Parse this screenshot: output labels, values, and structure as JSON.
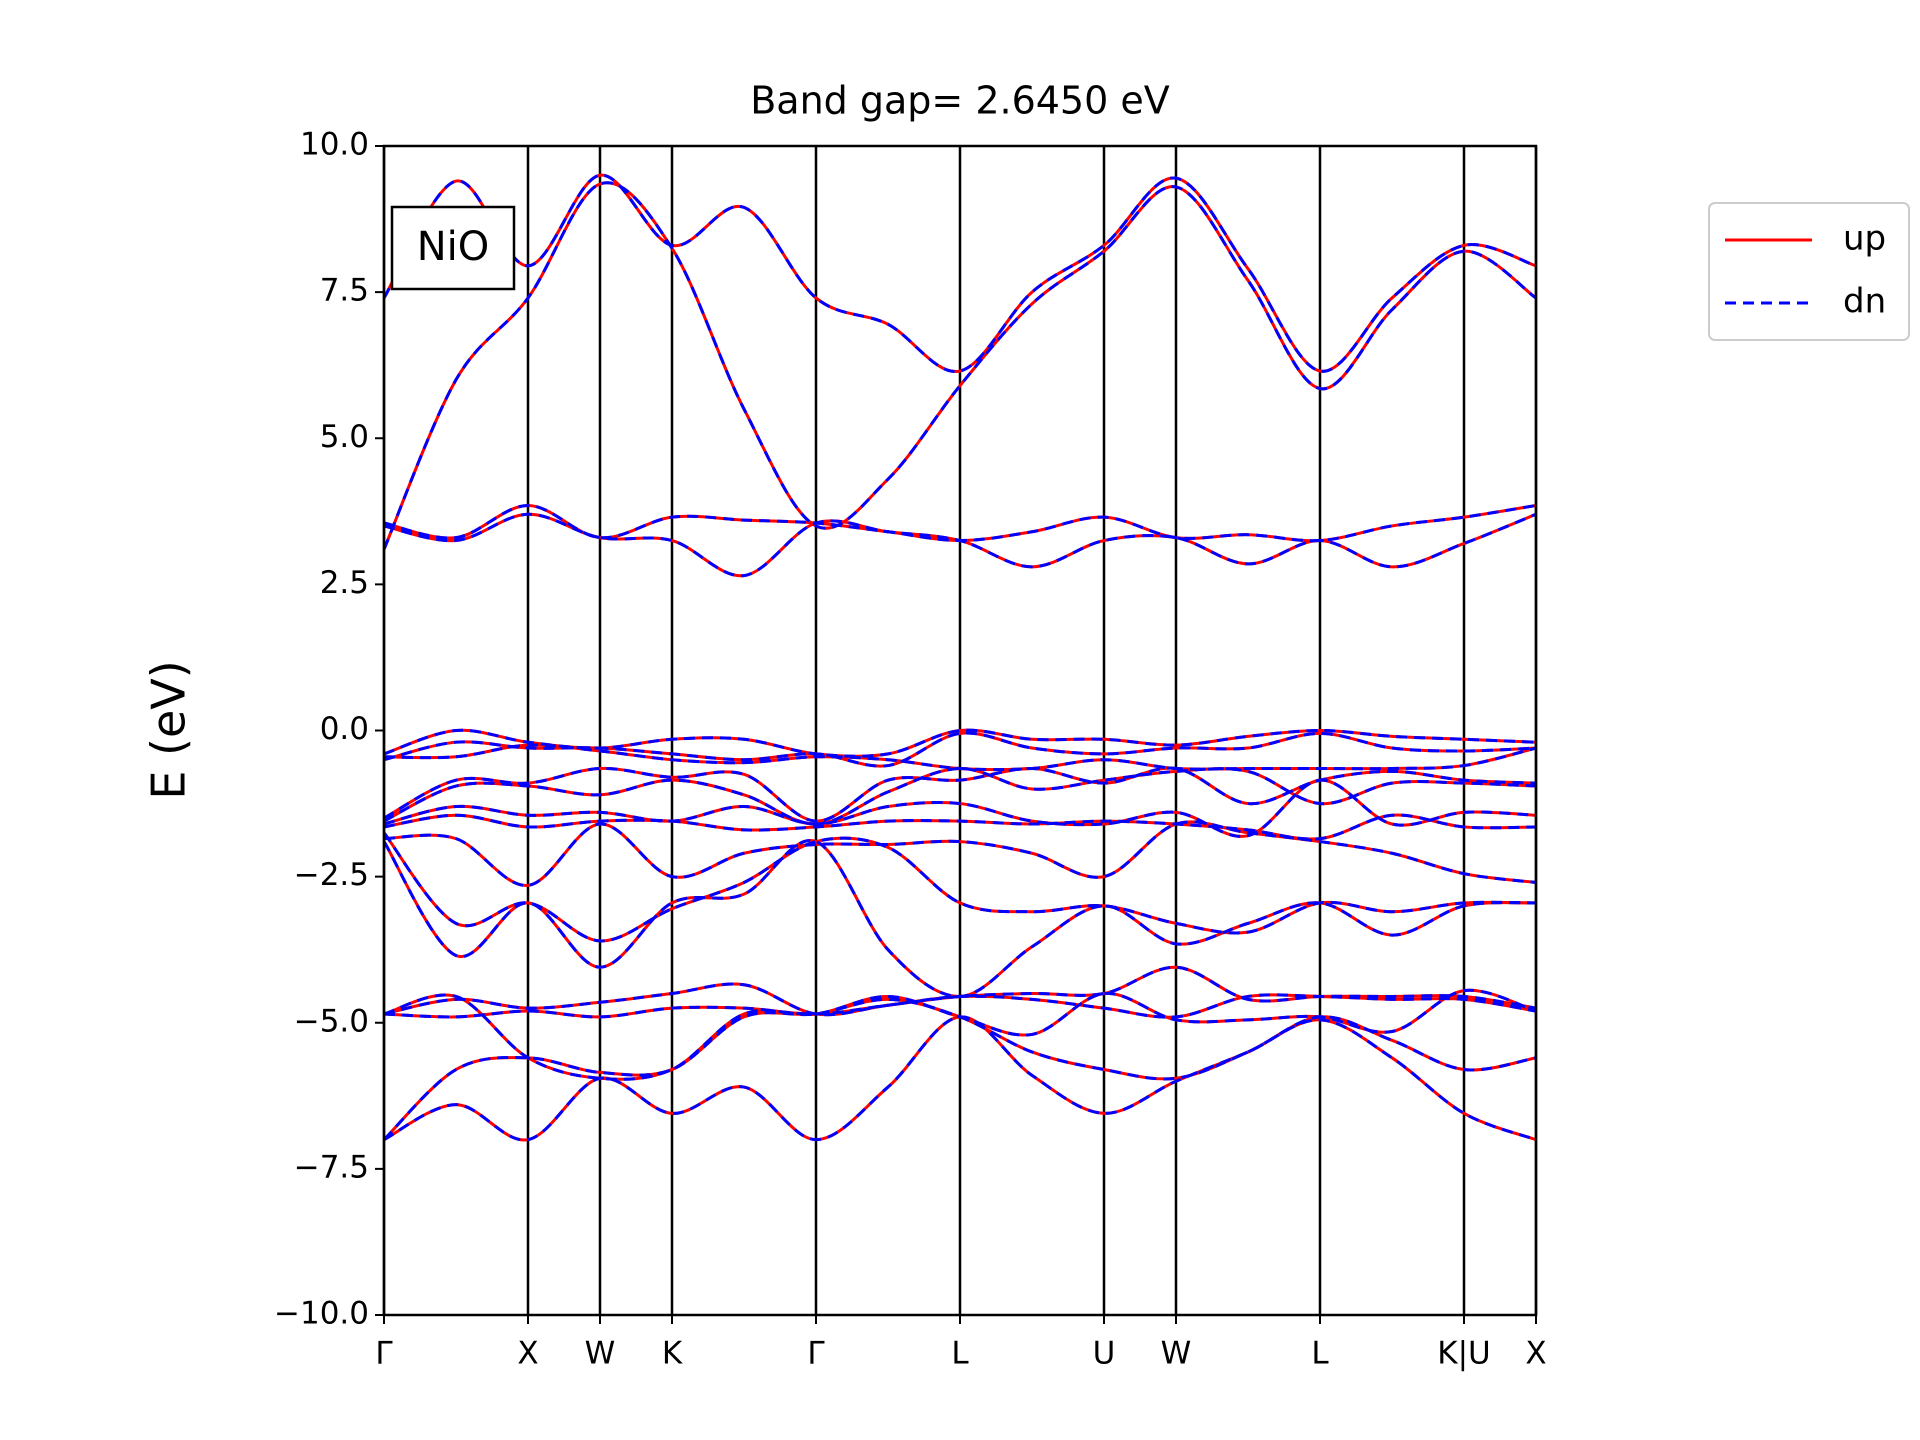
{
  "chart_data": {
    "type": "line",
    "title": "Band gap= 2.6450 eV",
    "ylabel": "E (eV)",
    "annotation": "NiO",
    "x": [
      0,
      1,
      2,
      3,
      4,
      5,
      6,
      7,
      8,
      9,
      10,
      11,
      12,
      13,
      14,
      15,
      16
    ],
    "xlim": [
      0,
      16
    ],
    "xticks": [
      {
        "value": 0,
        "label": "Γ"
      },
      {
        "value": 2,
        "label": "X"
      },
      {
        "value": 3,
        "label": "W"
      },
      {
        "value": 4,
        "label": "K"
      },
      {
        "value": 6,
        "label": "Γ"
      },
      {
        "value": 8,
        "label": "L"
      },
      {
        "value": 10,
        "label": "U"
      },
      {
        "value": 11,
        "label": "W"
      },
      {
        "value": 13,
        "label": "L"
      },
      {
        "value": 15,
        "label": "K|U"
      },
      {
        "value": 16,
        "label": "X"
      }
    ],
    "ylim": [
      -10,
      10
    ],
    "yticks": [
      {
        "value": -10,
        "label": "−10.0"
      },
      {
        "value": -7.5,
        "label": "−7.5"
      },
      {
        "value": -5,
        "label": "−5.0"
      },
      {
        "value": -2.5,
        "label": "−2.5"
      },
      {
        "value": 0,
        "label": "0.0"
      },
      2.5,
      {
        "value": 5,
        "label": "5.0"
      },
      7.5,
      {
        "value": 10,
        "label": "10.0"
      }
    ],
    "xgrid": true,
    "legend": "outside upper right",
    "series": [
      {
        "name": "up",
        "color": "#ff0000",
        "linestyle": "solid",
        "values": [
          [
            7.4,
            9.4,
            7.95,
            9.5,
            8.3,
            8.95,
            7.4,
            6.95,
            6.15,
            7.5,
            8.3,
            9.45,
            7.9,
            6.15,
            7.4,
            8.3,
            7.95
          ],
          [
            3.1,
            6.0,
            7.4,
            9.35,
            8.25,
            5.5,
            3.5,
            4.3,
            5.9,
            7.3,
            8.2,
            9.3,
            7.7,
            5.85,
            7.2,
            8.2,
            7.4
          ],
          [
            3.55,
            3.3,
            3.85,
            3.3,
            3.65,
            3.6,
            3.55,
            3.4,
            3.25,
            3.4,
            3.65,
            3.3,
            3.35,
            3.25,
            3.5,
            3.65,
            3.85
          ],
          [
            3.5,
            3.25,
            3.7,
            3.3,
            3.25,
            2.65,
            3.55,
            3.4,
            3.25,
            2.8,
            3.25,
            3.3,
            2.85,
            3.25,
            2.8,
            3.2,
            3.7
          ],
          [
            -0.4,
            0.0,
            -0.2,
            -0.3,
            -0.15,
            -0.15,
            -0.4,
            -0.4,
            0.0,
            -0.15,
            -0.15,
            -0.25,
            -0.1,
            0.0,
            -0.1,
            -0.15,
            -0.2
          ],
          [
            -0.5,
            -0.2,
            -0.3,
            -0.3,
            -0.4,
            -0.5,
            -0.4,
            -0.6,
            -0.05,
            -0.3,
            -0.4,
            -0.3,
            -0.3,
            -0.05,
            -0.3,
            -0.35,
            -0.3
          ],
          [
            -0.45,
            -0.45,
            -0.25,
            -0.35,
            -0.5,
            -0.55,
            -0.45,
            -0.5,
            -0.65,
            -0.65,
            -0.5,
            -0.65,
            -0.65,
            -0.65,
            -0.65,
            -0.6,
            -0.3
          ],
          [
            -1.5,
            -0.85,
            -0.9,
            -0.65,
            -0.8,
            -0.75,
            -1.55,
            -0.85,
            -0.85,
            -0.65,
            -0.9,
            -0.65,
            -1.25,
            -0.85,
            -0.7,
            -0.85,
            -0.9
          ],
          [
            -1.55,
            -0.95,
            -0.95,
            -1.1,
            -0.85,
            -1.1,
            -1.6,
            -1.05,
            -0.65,
            -1.0,
            -0.85,
            -0.7,
            -0.7,
            -1.25,
            -0.9,
            -0.9,
            -0.95
          ],
          [
            -1.6,
            -1.3,
            -1.45,
            -1.4,
            -1.55,
            -1.3,
            -1.6,
            -1.3,
            -1.25,
            -1.55,
            -1.6,
            -1.4,
            -1.8,
            -0.85,
            -1.6,
            -1.4,
            -1.45
          ],
          [
            -1.65,
            -1.45,
            -1.65,
            -1.55,
            -1.55,
            -1.7,
            -1.65,
            -1.55,
            -1.55,
            -1.6,
            -1.55,
            -1.6,
            -1.7,
            -1.85,
            -1.45,
            -1.65,
            -1.65
          ],
          [
            -1.85,
            -1.85,
            -2.65,
            -1.6,
            -2.5,
            -2.1,
            -1.95,
            -1.95,
            -1.9,
            -2.1,
            -2.5,
            -1.6,
            -1.75,
            -1.9,
            -2.1,
            -2.45,
            -2.6
          ],
          [
            -1.75,
            -3.3,
            -2.95,
            -3.6,
            -3.05,
            -2.6,
            -1.9,
            -2.0,
            -2.95,
            -3.1,
            -3.0,
            -3.3,
            -3.45,
            -2.95,
            -3.1,
            -2.95,
            -2.95
          ],
          [
            -1.9,
            -3.85,
            -2.95,
            -4.05,
            -2.95,
            -2.8,
            -1.9,
            -3.75,
            -4.55,
            -3.7,
            -3.0,
            -3.65,
            -3.3,
            -2.95,
            -3.5,
            -3.0,
            -2.95
          ],
          [
            -4.85,
            -4.6,
            -4.75,
            -4.65,
            -4.5,
            -4.35,
            -4.85,
            -4.7,
            -4.55,
            -4.5,
            -4.5,
            -4.05,
            -4.6,
            -4.55,
            -4.55,
            -4.55,
            -4.75
          ],
          [
            -4.85,
            -4.9,
            -4.8,
            -4.9,
            -4.75,
            -4.75,
            -4.85,
            -4.7,
            -4.55,
            -4.6,
            -4.75,
            -4.9,
            -4.55,
            -4.55,
            -4.6,
            -4.6,
            -4.8
          ],
          [
            -4.85,
            -4.55,
            -5.6,
            -5.95,
            -5.8,
            -4.85,
            -4.85,
            -4.55,
            -4.9,
            -5.2,
            -4.5,
            -4.95,
            -4.95,
            -4.9,
            -5.15,
            -4.45,
            -4.8
          ],
          [
            -7.0,
            -5.8,
            -5.6,
            -5.85,
            -5.8,
            -4.9,
            -4.85,
            -4.6,
            -4.9,
            -5.5,
            -5.8,
            -5.95,
            -5.5,
            -4.9,
            -5.3,
            -5.8,
            -5.6
          ],
          [
            -7.0,
            -6.4,
            -7.0,
            -5.95,
            -6.55,
            -6.1,
            -7.0,
            -6.1,
            -4.9,
            -5.9,
            -6.55,
            -6.0,
            -5.5,
            -4.95,
            -5.6,
            -6.55,
            -7.0
          ]
        ]
      },
      {
        "name": "dn",
        "color": "#0000ff",
        "linestyle": "dashed",
        "values": [
          [
            7.4,
            9.4,
            7.95,
            9.5,
            8.3,
            8.95,
            7.4,
            6.95,
            6.15,
            7.5,
            8.3,
            9.45,
            7.9,
            6.15,
            7.4,
            8.3,
            7.95
          ],
          [
            3.1,
            6.0,
            7.4,
            9.35,
            8.25,
            5.5,
            3.5,
            4.3,
            5.9,
            7.3,
            8.2,
            9.3,
            7.7,
            5.85,
            7.2,
            8.2,
            7.4
          ],
          [
            3.55,
            3.3,
            3.85,
            3.3,
            3.65,
            3.6,
            3.55,
            3.4,
            3.25,
            3.4,
            3.65,
            3.3,
            3.35,
            3.25,
            3.5,
            3.65,
            3.85
          ],
          [
            3.5,
            3.25,
            3.7,
            3.3,
            3.25,
            2.65,
            3.55,
            3.4,
            3.25,
            2.8,
            3.25,
            3.3,
            2.85,
            3.25,
            2.8,
            3.2,
            3.7
          ],
          [
            -0.4,
            0.0,
            -0.2,
            -0.3,
            -0.15,
            -0.15,
            -0.4,
            -0.4,
            0.0,
            -0.15,
            -0.15,
            -0.25,
            -0.1,
            0.0,
            -0.1,
            -0.15,
            -0.2
          ],
          [
            -0.5,
            -0.2,
            -0.3,
            -0.3,
            -0.4,
            -0.5,
            -0.4,
            -0.6,
            -0.05,
            -0.3,
            -0.4,
            -0.3,
            -0.3,
            -0.05,
            -0.3,
            -0.35,
            -0.3
          ],
          [
            -0.45,
            -0.45,
            -0.25,
            -0.35,
            -0.5,
            -0.55,
            -0.45,
            -0.5,
            -0.65,
            -0.65,
            -0.5,
            -0.65,
            -0.65,
            -0.65,
            -0.65,
            -0.6,
            -0.3
          ],
          [
            -1.5,
            -0.85,
            -0.9,
            -0.65,
            -0.8,
            -0.75,
            -1.55,
            -0.85,
            -0.85,
            -0.65,
            -0.9,
            -0.65,
            -1.25,
            -0.85,
            -0.7,
            -0.85,
            -0.9
          ],
          [
            -1.55,
            -0.95,
            -0.95,
            -1.1,
            -0.85,
            -1.1,
            -1.6,
            -1.05,
            -0.65,
            -1.0,
            -0.85,
            -0.7,
            -0.7,
            -1.25,
            -0.9,
            -0.9,
            -0.95
          ],
          [
            -1.6,
            -1.3,
            -1.45,
            -1.4,
            -1.55,
            -1.3,
            -1.6,
            -1.3,
            -1.25,
            -1.55,
            -1.6,
            -1.4,
            -1.8,
            -0.85,
            -1.6,
            -1.4,
            -1.45
          ],
          [
            -1.65,
            -1.45,
            -1.65,
            -1.55,
            -1.55,
            -1.7,
            -1.65,
            -1.55,
            -1.55,
            -1.6,
            -1.55,
            -1.6,
            -1.7,
            -1.85,
            -1.45,
            -1.65,
            -1.65
          ],
          [
            -1.85,
            -1.85,
            -2.65,
            -1.6,
            -2.5,
            -2.1,
            -1.95,
            -1.95,
            -1.9,
            -2.1,
            -2.5,
            -1.6,
            -1.75,
            -1.9,
            -2.1,
            -2.45,
            -2.6
          ],
          [
            -1.75,
            -3.3,
            -2.95,
            -3.6,
            -3.05,
            -2.6,
            -1.9,
            -2.0,
            -2.95,
            -3.1,
            -3.0,
            -3.3,
            -3.45,
            -2.95,
            -3.1,
            -2.95,
            -2.95
          ],
          [
            -1.9,
            -3.85,
            -2.95,
            -4.05,
            -2.95,
            -2.8,
            -1.9,
            -3.75,
            -4.55,
            -3.7,
            -3.0,
            -3.65,
            -3.3,
            -2.95,
            -3.5,
            -3.0,
            -2.95
          ],
          [
            -4.85,
            -4.6,
            -4.75,
            -4.65,
            -4.5,
            -4.35,
            -4.85,
            -4.7,
            -4.55,
            -4.5,
            -4.5,
            -4.05,
            -4.6,
            -4.55,
            -4.55,
            -4.55,
            -4.75
          ],
          [
            -4.85,
            -4.9,
            -4.8,
            -4.9,
            -4.75,
            -4.75,
            -4.85,
            -4.7,
            -4.55,
            -4.6,
            -4.75,
            -4.9,
            -4.55,
            -4.55,
            -4.6,
            -4.6,
            -4.8
          ],
          [
            -4.85,
            -4.55,
            -5.6,
            -5.95,
            -5.8,
            -4.85,
            -4.85,
            -4.55,
            -4.9,
            -5.2,
            -4.5,
            -4.95,
            -4.95,
            -4.9,
            -5.15,
            -4.45,
            -4.8
          ],
          [
            -7.0,
            -5.8,
            -5.6,
            -5.85,
            -5.8,
            -4.9,
            -4.85,
            -4.6,
            -4.9,
            -5.5,
            -5.8,
            -5.95,
            -5.5,
            -4.9,
            -5.3,
            -5.8,
            -5.6
          ],
          [
            -7.0,
            -6.4,
            -7.0,
            -5.95,
            -6.55,
            -6.1,
            -7.0,
            -6.1,
            -4.9,
            -5.9,
            -6.55,
            -6.0,
            -5.5,
            -4.95,
            -5.6,
            -6.55,
            -7.0
          ]
        ]
      }
    ]
  }
}
